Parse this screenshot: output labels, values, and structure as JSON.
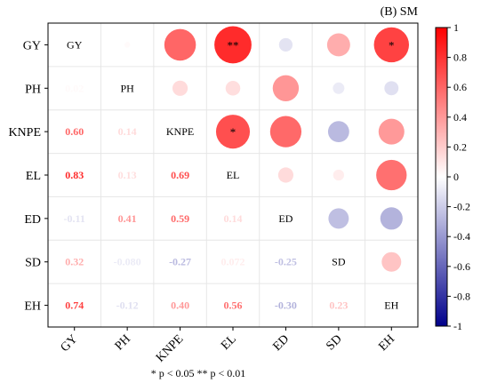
{
  "chart_data": {
    "type": "heatmap",
    "panel_label": "(B) SM",
    "variables": [
      "GY",
      "PH",
      "KNPE",
      "EL",
      "ED",
      "SD",
      "EH"
    ],
    "matrix": [
      [
        1.0,
        0.02,
        0.6,
        0.83,
        -0.11,
        0.32,
        0.74
      ],
      [
        0.02,
        1.0,
        0.14,
        0.13,
        0.41,
        -0.08,
        -0.12
      ],
      [
        0.6,
        0.14,
        1.0,
        0.69,
        0.59,
        -0.27,
        0.4
      ],
      [
        0.83,
        0.13,
        0.69,
        1.0,
        0.14,
        0.072,
        0.56
      ],
      [
        -0.11,
        0.41,
        0.59,
        0.14,
        1.0,
        -0.25,
        -0.3
      ],
      [
        0.32,
        -0.08,
        -0.27,
        0.072,
        -0.25,
        1.0,
        0.23
      ],
      [
        0.74,
        -0.12,
        0.4,
        0.56,
        -0.3,
        0.23,
        1.0
      ]
    ],
    "lower_labels": [
      [
        "PH",
        "GY",
        "0.02"
      ],
      [
        "KNPE",
        "GY",
        "0.60"
      ],
      [
        "KNPE",
        "PH",
        "0.14"
      ],
      [
        "EL",
        "GY",
        "0.83"
      ],
      [
        "EL",
        "PH",
        "0.13"
      ],
      [
        "EL",
        "KNPE",
        "0.69"
      ],
      [
        "ED",
        "GY",
        "-0.11"
      ],
      [
        "ED",
        "PH",
        "0.41"
      ],
      [
        "ED",
        "KNPE",
        "0.59"
      ],
      [
        "ED",
        "EL",
        "0.14"
      ],
      [
        "SD",
        "GY",
        "0.32"
      ],
      [
        "SD",
        "PH",
        "-0.080"
      ],
      [
        "SD",
        "KNPE",
        "-0.27"
      ],
      [
        "SD",
        "EL",
        "0.072"
      ],
      [
        "SD",
        "ED",
        "-0.25"
      ],
      [
        "EH",
        "GY",
        "0.74"
      ],
      [
        "EH",
        "PH",
        "-0.12"
      ],
      [
        "EH",
        "KNPE",
        "0.40"
      ],
      [
        "EH",
        "EL",
        "0.56"
      ],
      [
        "EH",
        "ED",
        "-0.30"
      ],
      [
        "EH",
        "SD",
        "0.23"
      ]
    ],
    "significance": [
      {
        "row": "GY",
        "col": "EL",
        "mark": "**"
      },
      {
        "row": "GY",
        "col": "EH",
        "mark": "*"
      },
      {
        "row": "KNPE",
        "col": "EL",
        "mark": "*"
      }
    ],
    "colorbar": {
      "min": -1,
      "max": 1,
      "ticks": [
        "1",
        "0.8",
        "0.6",
        "0.4",
        "0.2",
        "0",
        "-0.2",
        "-0.4",
        "-0.6",
        "-0.8",
        "-1"
      ],
      "high_color": "#ff0000",
      "mid_color": "#ffffff",
      "low_color": "#00008b"
    },
    "note": "* p < 0.05  ** p < 0.01",
    "grid": true
  }
}
